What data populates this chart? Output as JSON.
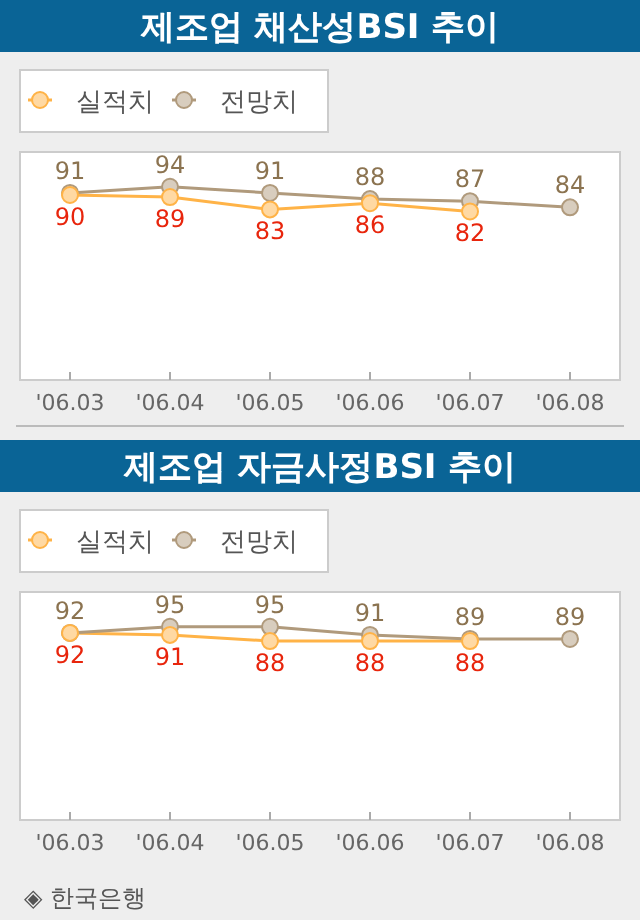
{
  "chart_data": [
    {
      "type": "line",
      "title": "제조업 채산성BSI 추이",
      "categories": [
        "'06.03",
        "'06.04",
        "'06.05",
        "'06.06",
        "'06.07",
        "'06.08"
      ],
      "data_labels": true,
      "legend": "top left",
      "marker": "circle",
      "tick_labels": "x",
      "series": [
        {
          "name": "실적치",
          "color": "#ffb347",
          "values": [
            90,
            89,
            83,
            86,
            82,
            null
          ]
        },
        {
          "name": "전망치",
          "color": "#b09a7c",
          "values": [
            91,
            94,
            91,
            88,
            87,
            84
          ]
        }
      ]
    },
    {
      "type": "line",
      "title": "제조업 자금사정BSI 추이",
      "categories": [
        "'06.03",
        "'06.04",
        "'06.05",
        "'06.06",
        "'06.07",
        "'06.08"
      ],
      "data_labels": true,
      "legend": "top left",
      "marker": "circle",
      "tick_labels": "x",
      "annotations": [
        "◈ 한국은행"
      ],
      "series": [
        {
          "name": "실적치",
          "color": "#ffb347",
          "values": [
            92,
            91,
            88,
            88,
            88,
            null
          ]
        },
        {
          "name": "전망치",
          "color": "#b09a7c",
          "values": [
            92,
            95,
            95,
            91,
            89,
            89
          ]
        }
      ]
    }
  ]
}
